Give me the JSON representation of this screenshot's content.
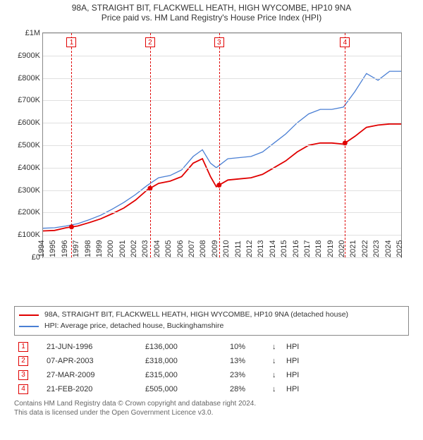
{
  "title": "98A, STRAIGHT BIT, FLACKWELL HEATH, HIGH WYCOMBE, HP10 9NA",
  "subtitle": "Price paid vs. HM Land Registry's House Price Index (HPI)",
  "chart": {
    "type": "line",
    "background_color": "#ffffff",
    "grid_color": "#e0e0e0",
    "axis_color": "#888888",
    "x_years": [
      1994,
      1995,
      1996,
      1997,
      1998,
      1999,
      2000,
      2001,
      2002,
      2003,
      2004,
      2005,
      2006,
      2007,
      2008,
      2009,
      2010,
      2011,
      2012,
      2013,
      2014,
      2015,
      2016,
      2017,
      2018,
      2019,
      2020,
      2021,
      2022,
      2023,
      2024,
      2025
    ],
    "xlim": [
      1994,
      2025
    ],
    "ylim": [
      0,
      1000000
    ],
    "y_ticks": [
      0,
      100000,
      200000,
      300000,
      400000,
      500000,
      600000,
      700000,
      800000,
      900000,
      1000000
    ],
    "y_tick_labels": [
      "£0",
      "£100K",
      "£200K",
      "£300K",
      "£400K",
      "£500K",
      "£600K",
      "£700K",
      "£800K",
      "£900K",
      "£1M"
    ],
    "series": [
      {
        "label": "98A, STRAIGHT BIT, FLACKWELL HEATH, HIGH WYCOMBE, HP10 9NA (detached house)",
        "color": "#e00000",
        "width": 1.8,
        "points": [
          [
            1994,
            118000
          ],
          [
            1995,
            120000
          ],
          [
            1996,
            132000
          ],
          [
            1997,
            140000
          ],
          [
            1998,
            155000
          ],
          [
            1999,
            172000
          ],
          [
            2000,
            195000
          ],
          [
            2001,
            220000
          ],
          [
            2002,
            255000
          ],
          [
            2003,
            300000
          ],
          [
            2004,
            330000
          ],
          [
            2005,
            340000
          ],
          [
            2006,
            360000
          ],
          [
            2007,
            420000
          ],
          [
            2007.8,
            440000
          ],
          [
            2008.5,
            360000
          ],
          [
            2009,
            315000
          ],
          [
            2010,
            345000
          ],
          [
            2011,
            350000
          ],
          [
            2012,
            355000
          ],
          [
            2013,
            370000
          ],
          [
            2014,
            400000
          ],
          [
            2015,
            430000
          ],
          [
            2016,
            470000
          ],
          [
            2017,
            500000
          ],
          [
            2018,
            510000
          ],
          [
            2019,
            510000
          ],
          [
            2020,
            505000
          ],
          [
            2021,
            540000
          ],
          [
            2022,
            580000
          ],
          [
            2023,
            590000
          ],
          [
            2024,
            595000
          ],
          [
            2025,
            595000
          ]
        ]
      },
      {
        "label": "HPI: Average price, detached house, Buckinghamshire",
        "color": "#4a7fd4",
        "width": 1.3,
        "points": [
          [
            1994,
            130000
          ],
          [
            1995,
            132000
          ],
          [
            1996,
            140000
          ],
          [
            1997,
            150000
          ],
          [
            1998,
            168000
          ],
          [
            1999,
            188000
          ],
          [
            2000,
            215000
          ],
          [
            2001,
            245000
          ],
          [
            2002,
            280000
          ],
          [
            2003,
            320000
          ],
          [
            2004,
            355000
          ],
          [
            2005,
            365000
          ],
          [
            2006,
            390000
          ],
          [
            2007,
            450000
          ],
          [
            2007.8,
            480000
          ],
          [
            2008.5,
            420000
          ],
          [
            2009,
            400000
          ],
          [
            2010,
            440000
          ],
          [
            2011,
            445000
          ],
          [
            2012,
            450000
          ],
          [
            2013,
            470000
          ],
          [
            2014,
            510000
          ],
          [
            2015,
            550000
          ],
          [
            2016,
            600000
          ],
          [
            2017,
            640000
          ],
          [
            2018,
            660000
          ],
          [
            2019,
            660000
          ],
          [
            2020,
            670000
          ],
          [
            2021,
            740000
          ],
          [
            2022,
            820000
          ],
          [
            2023,
            790000
          ],
          [
            2024,
            830000
          ],
          [
            2025,
            830000
          ]
        ]
      }
    ],
    "markers": [
      {
        "n": "1",
        "x": 1996.47
      },
      {
        "n": "2",
        "x": 2003.27
      },
      {
        "n": "3",
        "x": 2009.24
      },
      {
        "n": "4",
        "x": 2020.14
      }
    ]
  },
  "transactions": [
    {
      "n": "1",
      "date": "21-JUN-1996",
      "price": "£136,000",
      "pct": "10%",
      "dir": "↓",
      "suffix": "HPI"
    },
    {
      "n": "2",
      "date": "07-APR-2003",
      "price": "£318,000",
      "pct": "13%",
      "dir": "↓",
      "suffix": "HPI"
    },
    {
      "n": "3",
      "date": "27-MAR-2009",
      "price": "£315,000",
      "pct": "23%",
      "dir": "↓",
      "suffix": "HPI"
    },
    {
      "n": "4",
      "date": "21-FEB-2020",
      "price": "£505,000",
      "pct": "28%",
      "dir": "↓",
      "suffix": "HPI"
    }
  ],
  "footer_line1": "Contains HM Land Registry data © Crown copyright and database right 2024.",
  "footer_line2": "This data is licensed under the Open Government Licence v3.0."
}
